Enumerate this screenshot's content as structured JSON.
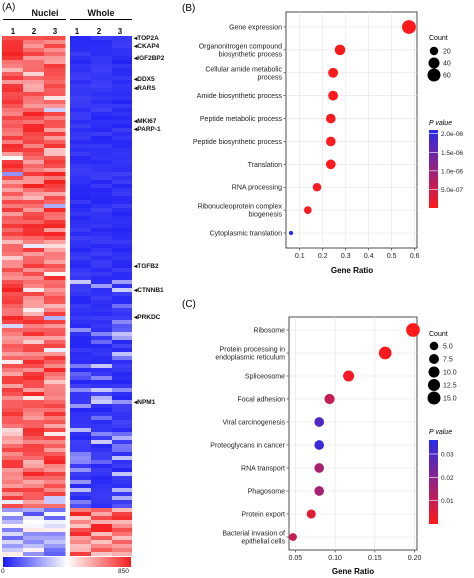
{
  "panel_a": {
    "label": "(A)",
    "groups": [
      "Nuclei",
      "Whole"
    ],
    "columns": [
      "1",
      "2",
      "3",
      "1",
      "2",
      "3"
    ],
    "genes": [
      "TOP2A",
      "CKAP4",
      "IGF2BP2",
      "DDX5",
      "RARS",
      "MKI67",
      "PARP-1",
      "TGFB2",
      "CTNNB1",
      "PRKDC",
      "NPM1"
    ],
    "colorbar": {
      "min_label": "0",
      "max_label": "850",
      "low_color": "#1b1bf5",
      "mid_color": "#ffffff",
      "high_color": "#f52020"
    }
  },
  "chart_data": [
    {
      "panel_label": "(B)",
      "type": "scatter",
      "xlabel": "Gene Ratio",
      "ylabel": "",
      "xlim": [
        0.04,
        0.61
      ],
      "xticks": [
        0.1,
        0.2,
        0.3,
        0.4,
        0.5,
        0.6
      ],
      "xtick_labels": [
        "0.1",
        "0.2",
        "0.3",
        "0.4",
        "0.5",
        "0.6"
      ],
      "grid": true,
      "legend_position": "right",
      "categories": [
        "Gene expression",
        "Organonitrogen compound biosynthetic process",
        "Cellular amide metabolic process",
        "Amide biosynthetic process",
        "Peptide metabolic process",
        "Peptide biosynthetic process",
        "Translation",
        "RNA processing",
        "Ribonucleoprotein complex biogenesis",
        "Cytoplasmic translation"
      ],
      "category_lines": [
        [
          "Gene expression"
        ],
        [
          "Organonitrogen compound",
          "biosynthetic process"
        ],
        [
          "Cellular amide metabolic",
          "process"
        ],
        [
          "Amide biosynthetic process"
        ],
        [
          "Peptide metabolic process"
        ],
        [
          "Peptide biosynthetic process"
        ],
        [
          "Translation"
        ],
        [
          "RNA processing"
        ],
        [
          "Ribonucleoprotein complex",
          "biogenesis"
        ],
        [
          "Cytoplasmic translation"
        ]
      ],
      "x": [
        0.575,
        0.275,
        0.245,
        0.245,
        0.235,
        0.235,
        0.235,
        0.175,
        0.135,
        0.062
      ],
      "count": [
        70,
        35,
        30,
        30,
        28,
        28,
        28,
        20,
        15,
        2
      ],
      "pvalue": [
        1e-09,
        2e-08,
        3e-08,
        3e-08,
        4e-08,
        4e-08,
        4e-08,
        8e-08,
        5e-08,
        2.1e-06
      ],
      "size_legend": {
        "title": "Count",
        "values": [
          20,
          40,
          60
        ],
        "labels": [
          "20",
          "40",
          "60"
        ]
      },
      "color_legend": {
        "title": "P value",
        "ticks": [
          2e-06,
          1.5e-06,
          1e-06,
          5e-07
        ],
        "labels": [
          "2.0e-06",
          "1.5e-06",
          "1.0e-06",
          "5.0e-07"
        ],
        "vmin": 0,
        "vmax": 2.1e-06,
        "low_color": "#ff1a1a",
        "high_color": "#2a2ae8"
      }
    },
    {
      "panel_label": "(C)",
      "type": "scatter",
      "xlabel": "Gene Ratio",
      "ylabel": "",
      "xlim": [
        0.042,
        0.203
      ],
      "xticks": [
        0.05,
        0.1,
        0.15,
        0.2
      ],
      "xtick_labels": [
        "0.05",
        "0.10",
        "0.15",
        "0.20"
      ],
      "grid": true,
      "legend_position": "right",
      "categories": [
        "Ribosome",
        "Protein processing in endoplasmic reticulum",
        "Spliceosome",
        "Focal adhesion",
        "Viral carcinogenesis",
        "Proteoglycans in cancer",
        "RNA transport",
        "Phagosome",
        "Protein export",
        "Bacterial invasion of epithelial cells"
      ],
      "category_lines": [
        [
          "Ribosome"
        ],
        [
          "Protein processing in",
          "endoplasmic reticulum"
        ],
        [
          "Spliceosome"
        ],
        [
          "Focal adhesion"
        ],
        [
          "Viral carcinogenesis"
        ],
        [
          "Proteoglycans in cancer"
        ],
        [
          "RNA transport"
        ],
        [
          "Phagosome"
        ],
        [
          "Protein export"
        ],
        [
          "Bacterial invasion of",
          "epithelial cells"
        ]
      ],
      "x": [
        0.198,
        0.163,
        0.117,
        0.093,
        0.08,
        0.08,
        0.08,
        0.08,
        0.07,
        0.047
      ],
      "count": [
        17,
        14,
        10,
        8,
        7,
        7,
        7,
        7,
        6,
        4
      ],
      "pvalue": [
        0.0001,
        0.001,
        0.002,
        0.01,
        0.03,
        0.033,
        0.015,
        0.015,
        0.005,
        0.01
      ],
      "size_legend": {
        "title": "Count",
        "values": [
          5,
          7.5,
          10,
          12.5,
          15
        ],
        "labels": [
          "5.0",
          "7.5",
          "10.0",
          "12.5",
          "15.0"
        ]
      },
      "color_legend": {
        "title": "P value",
        "ticks": [
          0.03,
          0.02,
          0.01
        ],
        "labels": [
          "0.03",
          "0.02",
          "0.01"
        ],
        "vmin": 0,
        "vmax": 0.036,
        "low_color": "#ff1a1a",
        "high_color": "#2a2ae8"
      }
    }
  ]
}
